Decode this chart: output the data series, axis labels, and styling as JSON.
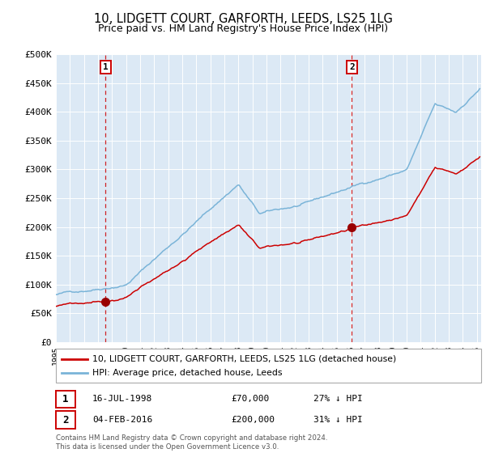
{
  "title": "10, LIDGETT COURT, GARFORTH, LEEDS, LS25 1LG",
  "subtitle": "Price paid vs. HM Land Registry's House Price Index (HPI)",
  "title_fontsize": 10.5,
  "subtitle_fontsize": 9,
  "plot_bg_color": "#dce9f5",
  "line_color_hpi": "#7ab4d8",
  "line_color_property": "#cc0000",
  "marker_color": "#990000",
  "vline_color": "#cc0000",
  "ylim": [
    0,
    500000
  ],
  "ytick_labels": [
    "£0",
    "£50K",
    "£100K",
    "£150K",
    "£200K",
    "£250K",
    "£300K",
    "£350K",
    "£400K",
    "£450K",
    "£500K"
  ],
  "ytick_values": [
    0,
    50000,
    100000,
    150000,
    200000,
    250000,
    300000,
    350000,
    400000,
    450000,
    500000
  ],
  "sale1_date_label": "16-JUL-1998",
  "sale1_price": 70000,
  "sale1_price_label": "£70,000",
  "sale1_pct_label": "27% ↓ HPI",
  "sale1_year": 1998.54,
  "sale2_date_label": "04-FEB-2016",
  "sale2_price": 200000,
  "sale2_price_label": "£200,000",
  "sale2_pct_label": "31% ↓ HPI",
  "sale2_year": 2016.09,
  "legend1_label": "10, LIDGETT COURT, GARFORTH, LEEDS, LS25 1LG (detached house)",
  "legend2_label": "HPI: Average price, detached house, Leeds",
  "footer1": "Contains HM Land Registry data © Crown copyright and database right 2024.",
  "footer2": "This data is licensed under the Open Government Licence v3.0.",
  "xstart": 1995,
  "xend": 2025
}
